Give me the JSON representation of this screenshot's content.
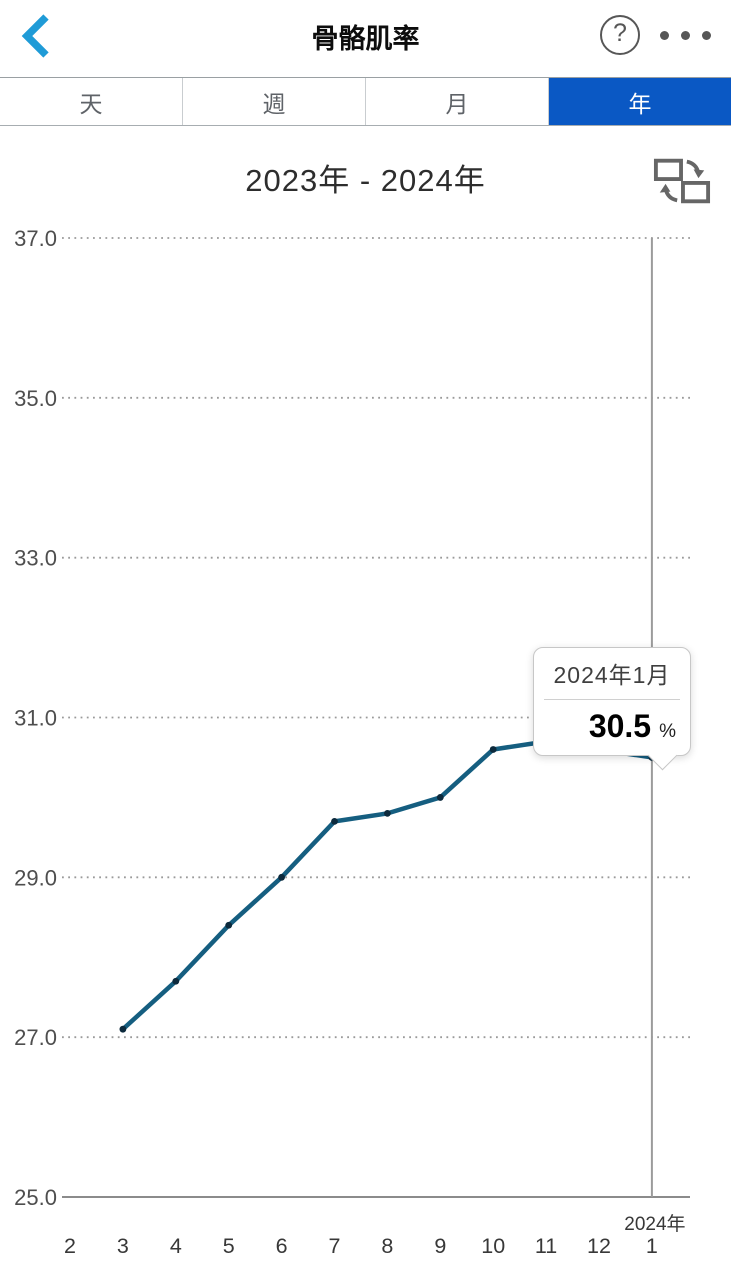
{
  "header": {
    "title": "骨骼肌率",
    "help_glyph": "?",
    "icons": {
      "back": "chevron-left-icon",
      "help": "question-mark-circle-icon",
      "more": "ellipsis-icon"
    }
  },
  "tabs": {
    "items": [
      {
        "label": "天",
        "selected": false
      },
      {
        "label": "週",
        "selected": false
      },
      {
        "label": "月",
        "selected": false
      },
      {
        "label": "年",
        "selected": true
      }
    ]
  },
  "chart_header": {
    "range_label": "2023年 - 2024年",
    "compare_icon": "swap-data-icon"
  },
  "tooltip": {
    "date": "2024年1月",
    "value": "30.5",
    "unit": "%"
  },
  "chart_data": {
    "type": "line",
    "title": "2023年 - 2024年",
    "unit": "%",
    "x_labels": [
      "2",
      "3",
      "4",
      "5",
      "6",
      "7",
      "8",
      "9",
      "10",
      "11",
      "12",
      "1"
    ],
    "x_year_label": {
      "text": "2024年",
      "above_index": 11
    },
    "values": [
      null,
      27.1,
      27.7,
      28.4,
      29.0,
      29.7,
      29.8,
      30.0,
      30.6,
      30.7,
      30.6,
      30.5
    ],
    "y_ticks": [
      37.0,
      35.0,
      33.0,
      31.0,
      29.0,
      27.0,
      25.0
    ],
    "ylim": [
      25.0,
      37.0
    ],
    "grid": "dotted-horizontal",
    "legend": "none",
    "selected_point": {
      "index": 11,
      "x_label": "1",
      "year": "2024",
      "value": 30.5
    }
  },
  "colors": {
    "accent_tab_blue": "#0a58c4",
    "back_arrow_blue": "#1f9bd7",
    "line": "#155e80",
    "point": "#0c2a3d",
    "grid": "#9a9a9a",
    "axis": "#8b8b8b",
    "cursor": "#9b9b9b",
    "tick_text": "#4e4e4e",
    "x_text": "#383838"
  }
}
